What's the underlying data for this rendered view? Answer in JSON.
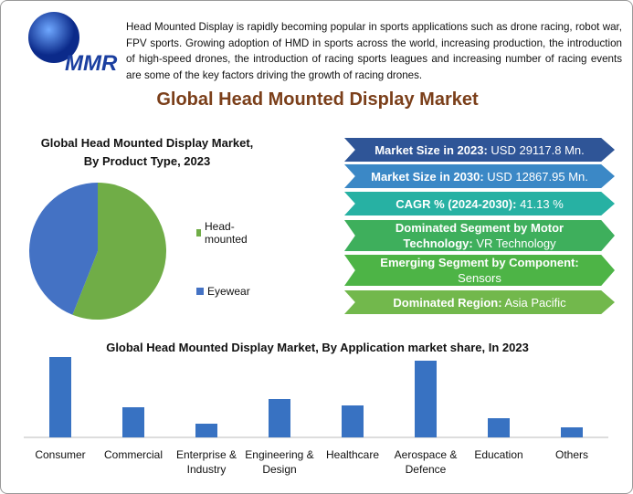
{
  "header": {
    "logo_text": "MMR",
    "description": "Head Mounted Display is rapidly becoming popular in sports applications such as drone racing, robot war, FPV sports. Growing adoption of HMD in sports across the world, increasing production, the introduction of high-speed drones, the introduction of racing sports leagues and increasing number of racing events are some of the key factors driving the growth of racing drones.",
    "title": "Global Head Mounted Display Market"
  },
  "info_boxes": [
    {
      "label": "Market Size in 2023:",
      "value": "USD 29117.8 Mn.",
      "color": "#2f5597"
    },
    {
      "label": "Market Size in 2030:",
      "value": "USD 12867.95 Mn.",
      "color": "#3b88c6"
    },
    {
      "label": "CAGR % (2024-2030):",
      "value": "41.13 %",
      "color": "#27b1a3"
    },
    {
      "label": "Dominated Segment by Motor Technology:",
      "value": "VR Technology",
      "color": "#3eaf5c"
    },
    {
      "label": "Emerging Segment by Component:",
      "value": "Sensors",
      "color": "#4db446"
    },
    {
      "label": "Dominated Region:",
      "value": "Asia Pacific",
      "color": "#72b84c"
    }
  ],
  "chart_data": [
    {
      "type": "pie",
      "title": "Global Head Mounted Display Market, By Product Type, 2023",
      "categories": [
        "Head-mounted",
        "Eyewear"
      ],
      "values": [
        56,
        44
      ],
      "colors": [
        "#70ad47",
        "#4472c4"
      ],
      "legend": "right"
    },
    {
      "type": "bar",
      "title": "Global Head Mounted Display Market, By Application market share, In 2023",
      "categories": [
        "Consumer",
        "Commercial",
        "Enterprise & Industry",
        "Engineering & Design",
        "Healthcare",
        "Aerospace & Defence",
        "Education",
        "Others"
      ],
      "values": [
        88,
        33,
        15,
        42,
        35,
        84,
        21,
        11
      ],
      "color": "#3872c2"
    }
  ]
}
